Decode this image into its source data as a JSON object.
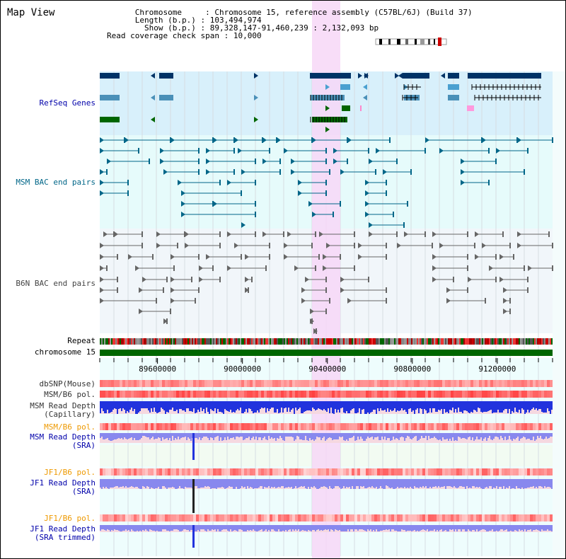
{
  "app": {
    "title": "Map View"
  },
  "info": {
    "chromosome_label": "Chromosome",
    "chromosome_value": "Chromosome 15, reference assembly (C57BL/6J) (Build 37)",
    "length_label": "Length (b.p.)",
    "length_value": "103,494,974",
    "show_label": "Show (b.p.)",
    "show_value": "89,328,147-91,460,239 : 2,132,093 bp",
    "span_label": "Read coverage check span",
    "span_value": "10,000"
  },
  "tracks": {
    "refseq": "RefSeq Genes",
    "msm_bac": "MSM BAC end pairs",
    "b6n_bac": "B6N BAC end pairs",
    "repeat": "Repeat",
    "chromosome": "chromosome 15",
    "dbsnp": "dbSNP(Mouse)",
    "msm_pol": "MSM/B6 pol.",
    "msm_depth_cap_1": "MSM Read Depth",
    "msm_depth_cap_2": "(Capillary)",
    "msm_pol_2": "MSM/B6 pol.",
    "msm_depth_sra_1": "MSM Read Depth",
    "msm_depth_sra_2": "(SRA)",
    "jf1_pol": "JF1/B6 pol.",
    "jf1_depth_sra_1": "JF1 Read Depth",
    "jf1_depth_sra_2": "(SRA)",
    "jf1_pol_2": "JF1/B6 pol.",
    "jf1_depth_trim_1": "JF1 Read Depth",
    "jf1_depth_trim_2": "(SRA trimmed)"
  },
  "axis": {
    "ticks": [
      "89600000",
      "90000000",
      "90400000",
      "90800000",
      "91200000"
    ],
    "tick_values": [
      89600000,
      90000000,
      90400000,
      90800000,
      91200000
    ],
    "range": [
      89328147,
      91460239
    ]
  },
  "highlight": {
    "start": 90330000,
    "end": 90395000
  },
  "colors": {
    "label_dark": "#333333",
    "label_blue": "#0000aa",
    "label_orange": "#ee9900",
    "label_teal": "#006688",
    "label_gray": "#444444",
    "refseq_bg": "#d8f0fb",
    "bac_bg": "#e6fbfb",
    "b6n_bg": "#f1f6fa",
    "highlight": "#f7d7f7",
    "chromosome_bar": "#006600",
    "depth_blue": "#2233dd",
    "depth_light": "#8888ee"
  }
}
